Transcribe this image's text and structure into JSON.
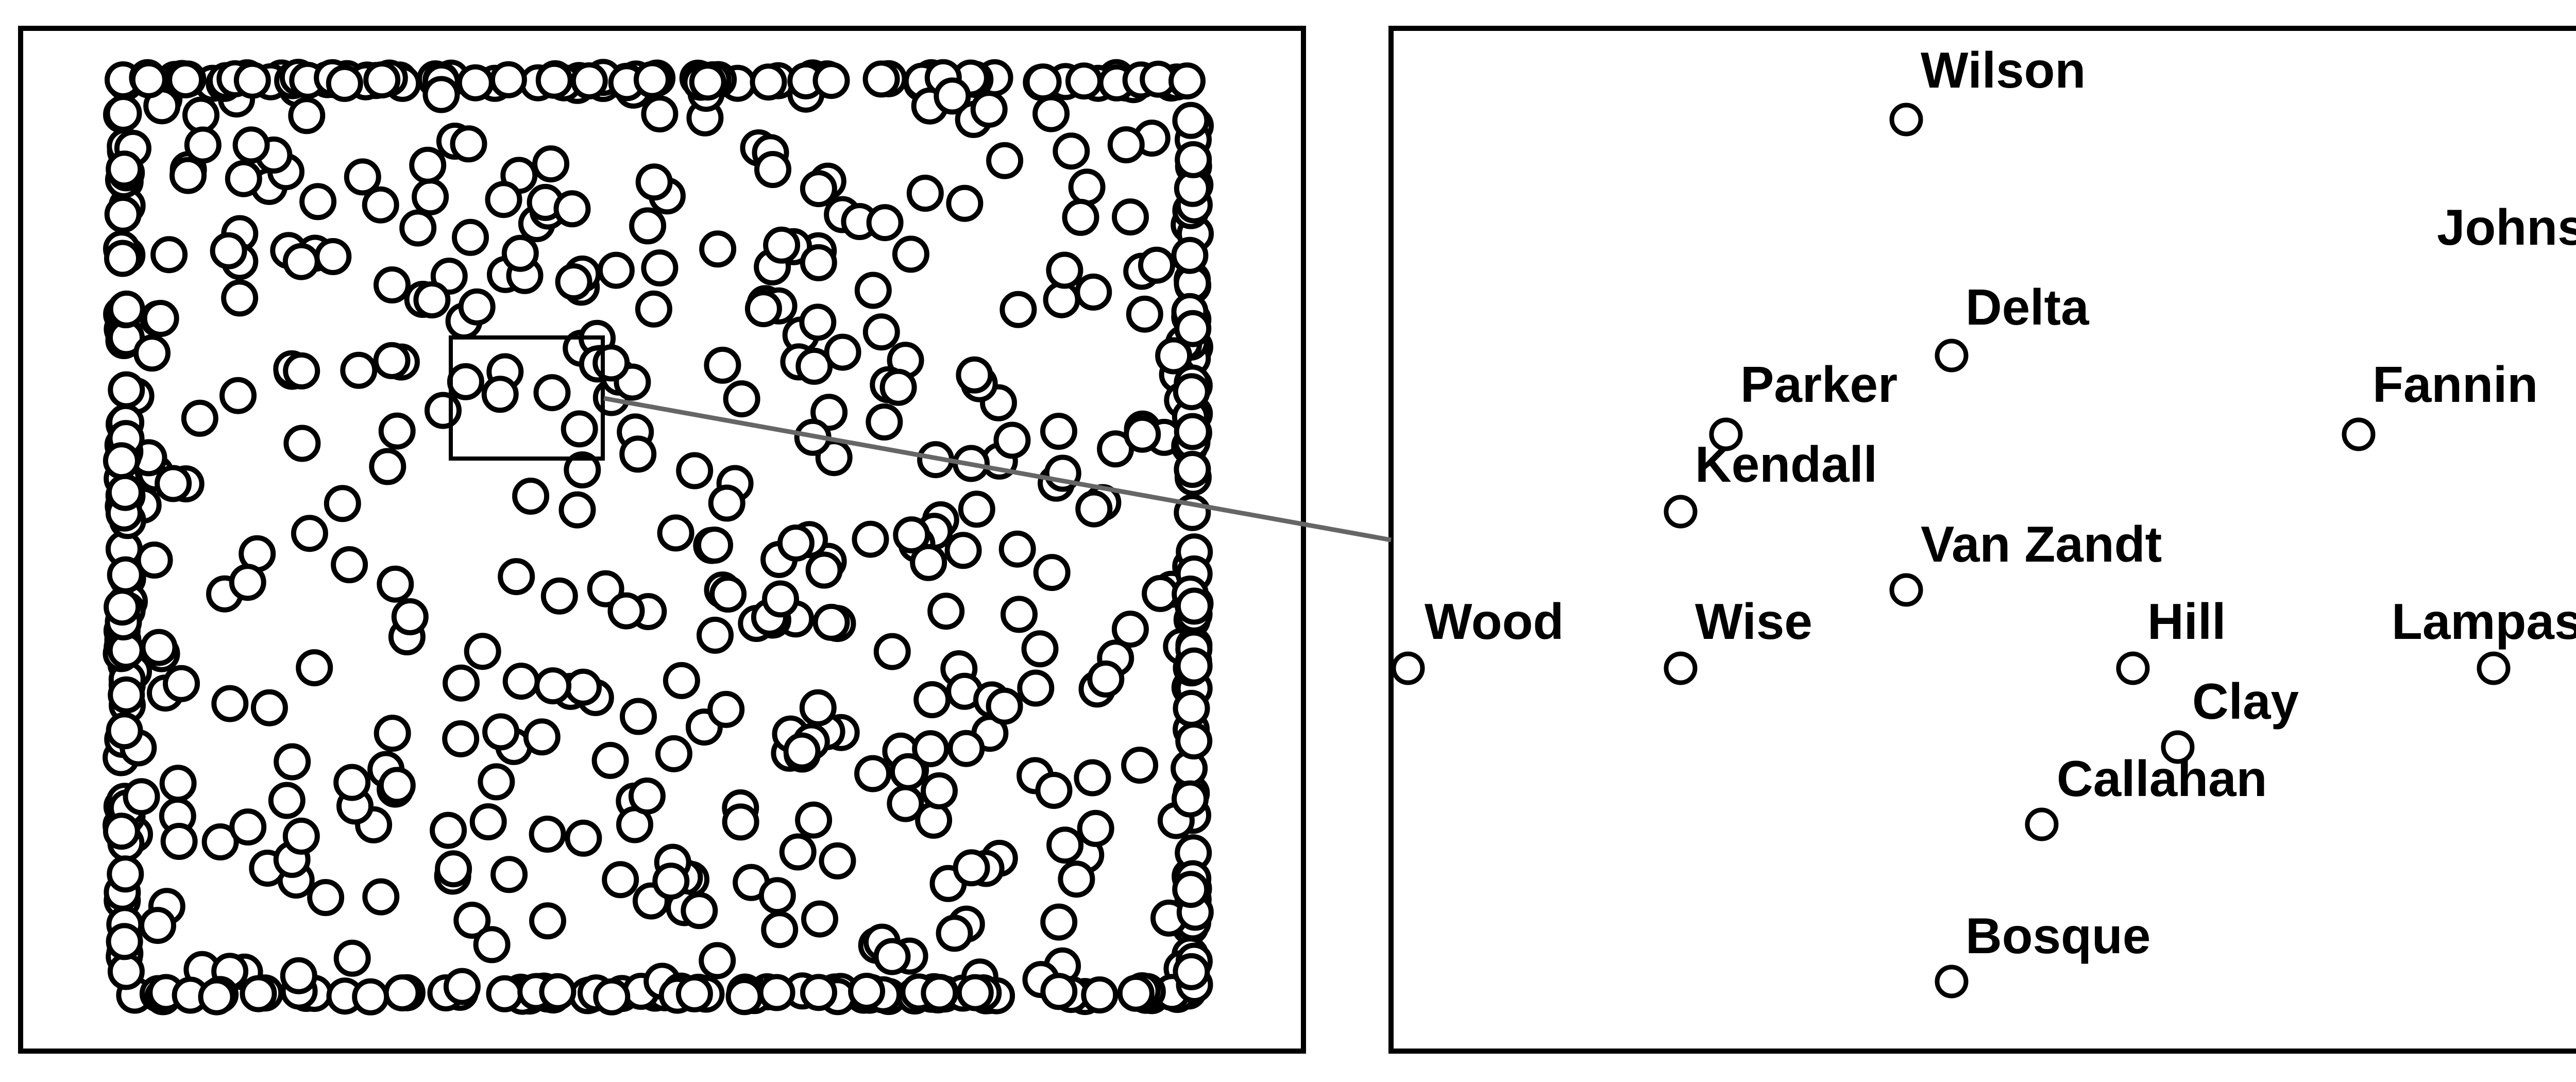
{
  "overview": {
    "point_count": 700,
    "marker": "open-circle"
  },
  "zoom_view": {
    "points": [
      {
        "name": "Wilson"
      },
      {
        "name": "Johnson"
      },
      {
        "name": "Delta"
      },
      {
        "name": "Parker"
      },
      {
        "name": "Fannin"
      },
      {
        "name": "Kendall"
      },
      {
        "name": "Van Zandt"
      },
      {
        "name": "Wood"
      },
      {
        "name": "Wise"
      },
      {
        "name": "Hill"
      },
      {
        "name": "Lampasas"
      },
      {
        "name": "Clay"
      },
      {
        "name": "Callahan"
      },
      {
        "name": "Bosque"
      }
    ]
  },
  "colors": {
    "marker_stroke": "#000000",
    "marker_fill": "#ffffff",
    "connector": "#666666"
  }
}
